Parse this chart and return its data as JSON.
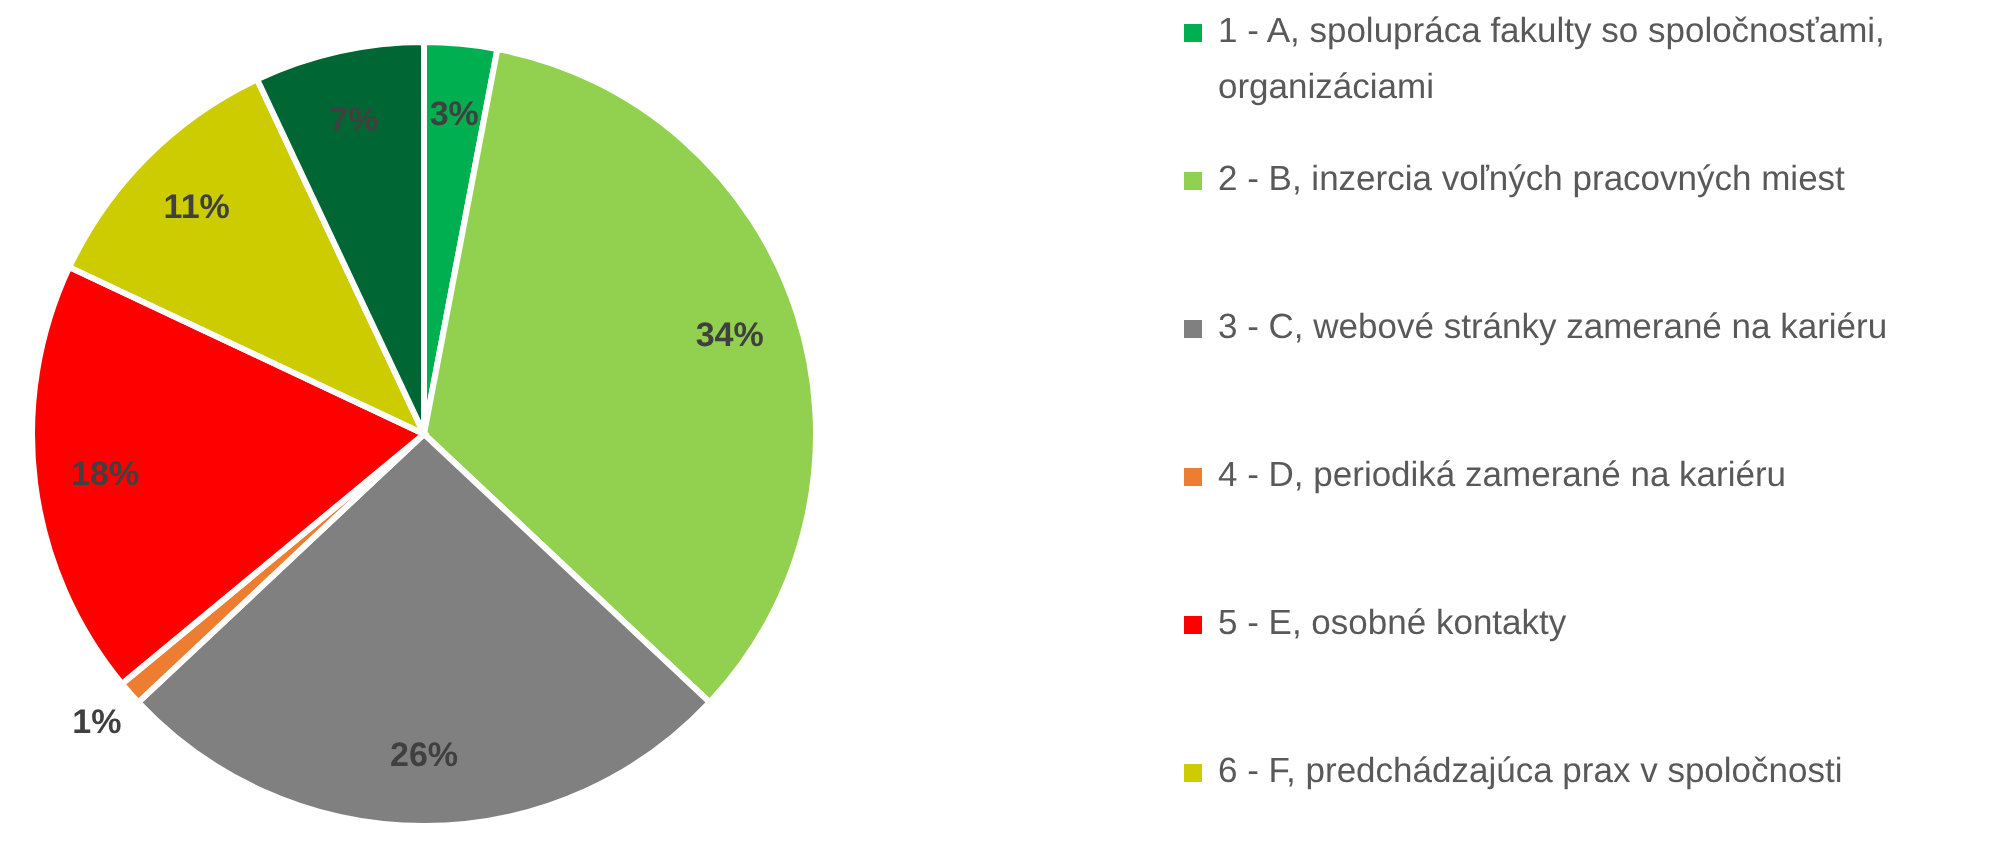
{
  "chart_data": {
    "type": "pie",
    "categories": [
      "1 - A, spolupráca fakulty so spoločnosťami, organizáciami",
      "2 - B, inzercia voľných pracovných miest",
      "3 - C, webové stránky zamerané na kariéru",
      "4 - D, periodiká zamerané na kariéru",
      "5 - E, osobné kontakty",
      "6 - F, predchádzajúca prax v spoločnosti",
      null
    ],
    "values": [
      3,
      34,
      26,
      1,
      18,
      11,
      7
    ],
    "value_labels": [
      "3%",
      "34%",
      "26%",
      "1%",
      "18%",
      "11%",
      "7%"
    ],
    "colors": [
      "#00b050",
      "#92d050",
      "#808080",
      "#ed7d31",
      "#ff0000",
      "#cccc00",
      "#006633"
    ],
    "legend": "right"
  }
}
